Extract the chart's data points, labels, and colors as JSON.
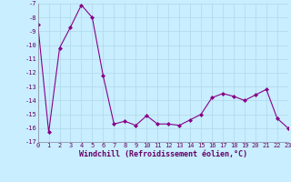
{
  "x": [
    0,
    1,
    2,
    3,
    4,
    5,
    6,
    7,
    8,
    9,
    10,
    11,
    12,
    13,
    14,
    15,
    16,
    17,
    18,
    19,
    20,
    21,
    22,
    23
  ],
  "y": [
    -8.5,
    -16.3,
    -10.2,
    -8.7,
    -7.1,
    -8.0,
    -12.2,
    -15.7,
    -15.5,
    -15.8,
    -15.1,
    -15.7,
    -15.7,
    -15.8,
    -15.4,
    -15.0,
    -13.8,
    -13.5,
    -13.7,
    -14.0,
    -13.6,
    -13.2,
    -15.3,
    -16.0
  ],
  "line_color": "#880088",
  "marker": "D",
  "marker_size": 2,
  "xlabel": "Windchill (Refroidissement éolien,°C)",
  "ylim": [
    -17,
    -7
  ],
  "xlim": [
    0,
    23
  ],
  "yticks": [
    -17,
    -16,
    -15,
    -14,
    -13,
    -12,
    -11,
    -10,
    -9,
    -8,
    -7
  ],
  "xticks": [
    0,
    1,
    2,
    3,
    4,
    5,
    6,
    7,
    8,
    9,
    10,
    11,
    12,
    13,
    14,
    15,
    16,
    17,
    18,
    19,
    20,
    21,
    22,
    23
  ],
  "bg_color": "#c8eeff",
  "grid_color": "#b0d8e8",
  "label_color": "#660066",
  "tick_fontsize": 5,
  "xlabel_fontsize": 6
}
